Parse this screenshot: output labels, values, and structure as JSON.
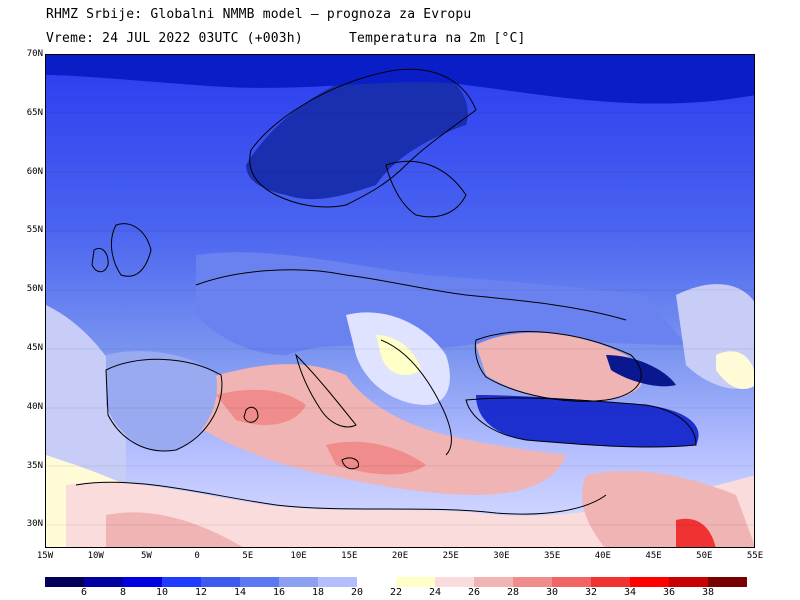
{
  "header": {
    "title": "RHMZ Srbije: Globalni NMMB model — prognoza za Evropu",
    "time": "Vreme: 24 JUL 2022 03UTC (+003h)",
    "parameter": "Temperatura na 2m [°C]"
  },
  "map": {
    "lat_ticks": [
      "70N",
      "65N",
      "60N",
      "55N",
      "50N",
      "45N",
      "40N",
      "35N",
      "30N"
    ],
    "lon_ticks": [
      "15W",
      "10W",
      "5W",
      "0",
      "5E",
      "10E",
      "15E",
      "20E",
      "25E",
      "30E",
      "35E",
      "40E",
      "45E",
      "50E",
      "55E"
    ],
    "lon_range": [
      -15,
      55
    ],
    "lat_range": [
      28,
      70
    ]
  },
  "legend": {
    "labels": [
      "6",
      "8",
      "10",
      "12",
      "14",
      "16",
      "18",
      "20",
      "22",
      "24",
      "26",
      "28",
      "30",
      "32",
      "34",
      "36",
      "38"
    ],
    "colors": [
      "#00005a",
      "#0000a0",
      "#0000e0",
      "#1e3cff",
      "#3c5af0",
      "#5a78f0",
      "#8ca0f0",
      "#b4beff",
      "#ffffff",
      "#ffffc8",
      "#fadcdc",
      "#f0b4b4",
      "#f08c8c",
      "#f06464",
      "#f03232",
      "#ff0000",
      "#c80000",
      "#780000"
    ]
  }
}
